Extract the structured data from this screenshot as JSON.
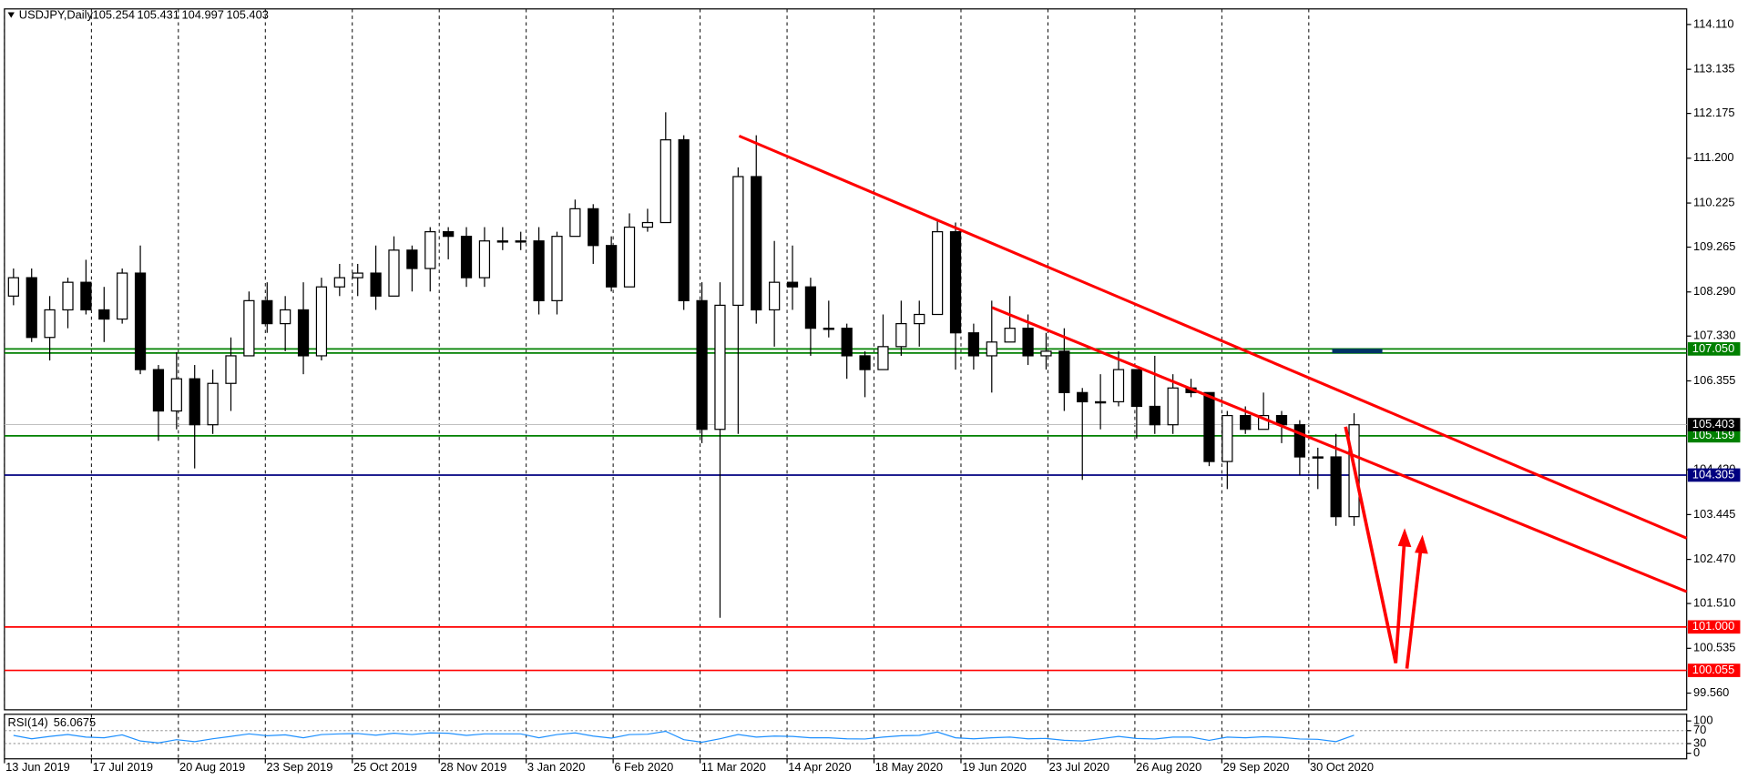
{
  "chart_data": {
    "type": "candlestick",
    "symbol": "USDJPY,Daily",
    "ohlc": [
      105.254,
      105.431,
      104.997,
      105.403
    ],
    "candles": [
      [
        108.2,
        108.8,
        108.0,
        108.6
      ],
      [
        108.6,
        108.8,
        107.2,
        107.3
      ],
      [
        107.3,
        108.2,
        106.8,
        107.9
      ],
      [
        107.9,
        108.6,
        107.5,
        108.5
      ],
      [
        108.5,
        108.99,
        107.8,
        107.9
      ],
      [
        107.9,
        108.4,
        107.2,
        107.7
      ],
      [
        107.7,
        108.8,
        107.6,
        108.7
      ],
      [
        108.7,
        109.3,
        106.5,
        106.6
      ],
      [
        106.6,
        106.7,
        105.05,
        105.7
      ],
      [
        105.7,
        106.98,
        105.3,
        106.4
      ],
      [
        106.4,
        106.7,
        104.45,
        105.4
      ],
      [
        105.4,
        106.6,
        105.2,
        106.3
      ],
      [
        106.3,
        107.3,
        105.7,
        106.9
      ],
      [
        106.9,
        108.3,
        106.9,
        108.1
      ],
      [
        108.1,
        108.5,
        107.4,
        107.6
      ],
      [
        107.6,
        108.2,
        107.0,
        107.9
      ],
      [
        107.9,
        108.5,
        106.5,
        106.9
      ],
      [
        106.9,
        108.6,
        106.8,
        108.4
      ],
      [
        108.4,
        108.9,
        108.2,
        108.6
      ],
      [
        108.6,
        108.9,
        108.2,
        108.7
      ],
      [
        108.7,
        109.3,
        107.9,
        108.2
      ],
      [
        108.2,
        109.5,
        108.2,
        109.2
      ],
      [
        109.2,
        109.3,
        108.3,
        108.8
      ],
      [
        108.8,
        109.7,
        108.3,
        109.6
      ],
      [
        109.6,
        109.7,
        109.0,
        109.5
      ],
      [
        109.5,
        109.7,
        108.4,
        108.6
      ],
      [
        108.6,
        109.7,
        108.4,
        109.4
      ],
      [
        109.4,
        109.7,
        109.2,
        109.4
      ],
      [
        109.4,
        109.6,
        109.2,
        109.4
      ],
      [
        109.4,
        109.7,
        107.8,
        108.1
      ],
      [
        108.1,
        109.6,
        107.8,
        109.5
      ],
      [
        109.5,
        110.3,
        109.5,
        110.1
      ],
      [
        110.1,
        110.2,
        108.9,
        109.3
      ],
      [
        109.3,
        109.5,
        108.3,
        108.4
      ],
      [
        108.4,
        110.0,
        108.4,
        109.7
      ],
      [
        109.7,
        110.1,
        109.6,
        109.8
      ],
      [
        109.8,
        112.2,
        109.8,
        111.6
      ],
      [
        111.6,
        111.7,
        107.9,
        108.1
      ],
      [
        108.1,
        108.5,
        105.0,
        105.3
      ],
      [
        105.3,
        108.5,
        101.2,
        108.0
      ],
      [
        108.0,
        111.0,
        105.2,
        110.8
      ],
      [
        110.8,
        111.7,
        107.6,
        107.9
      ],
      [
        107.9,
        109.4,
        107.1,
        108.5
      ],
      [
        108.5,
        109.3,
        107.9,
        108.4
      ],
      [
        108.4,
        108.6,
        106.9,
        107.5
      ],
      [
        107.5,
        108.1,
        107.3,
        107.5
      ],
      [
        107.5,
        107.6,
        106.4,
        106.9
      ],
      [
        106.9,
        107.0,
        106.0,
        106.6
      ],
      [
        106.6,
        107.8,
        106.6,
        107.1
      ],
      [
        107.1,
        108.1,
        106.9,
        107.6
      ],
      [
        107.6,
        108.1,
        107.1,
        107.8
      ],
      [
        107.8,
        109.85,
        107.8,
        109.6
      ],
      [
        109.6,
        109.8,
        106.6,
        107.4
      ],
      [
        107.4,
        107.6,
        106.6,
        106.9
      ],
      [
        106.9,
        108.1,
        106.1,
        107.2
      ],
      [
        107.2,
        108.2,
        107.2,
        107.5
      ],
      [
        107.5,
        107.8,
        106.7,
        106.9
      ],
      [
        106.9,
        107.4,
        106.6,
        107.0
      ],
      [
        107.0,
        107.5,
        105.7,
        106.1
      ],
      [
        106.1,
        106.2,
        104.2,
        105.9
      ],
      [
        105.9,
        106.5,
        105.3,
        105.9
      ],
      [
        105.9,
        107.0,
        105.8,
        106.6
      ],
      [
        106.6,
        106.6,
        105.1,
        105.8
      ],
      [
        105.8,
        106.9,
        105.2,
        105.4
      ],
      [
        105.4,
        106.5,
        105.2,
        106.2
      ],
      [
        106.2,
        106.4,
        106.0,
        106.1
      ],
      [
        106.1,
        106.1,
        104.5,
        104.6
      ],
      [
        104.6,
        105.7,
        104.0,
        105.6
      ],
      [
        105.6,
        105.8,
        105.2,
        105.3
      ],
      [
        105.3,
        106.1,
        105.3,
        105.6
      ],
      [
        105.6,
        105.7,
        105.0,
        105.4
      ],
      [
        105.4,
        105.5,
        104.3,
        104.7
      ],
      [
        104.7,
        104.9,
        104.0,
        104.7
      ],
      [
        104.7,
        105.2,
        103.2,
        103.4
      ],
      [
        103.4,
        105.65,
        103.2,
        105.4
      ]
    ],
    "up_color": "#ffffff",
    "down_color": "#000000",
    "xlim": [
      0,
      92.86
    ],
    "xticks": [
      {
        "value": 0,
        "label": "13 Jun 2019"
      },
      {
        "value": 4.8,
        "label": "17 Jul 2019"
      },
      {
        "value": 9.6,
        "label": "20 Aug 2019"
      },
      {
        "value": 14.4,
        "label": "23 Sep 2019"
      },
      {
        "value": 19.2,
        "label": "25 Oct 2019"
      },
      {
        "value": 24,
        "label": "28 Nov 2019"
      },
      {
        "value": 28.8,
        "label": "3 Jan 2020"
      },
      {
        "value": 33.6,
        "label": "6 Feb 2020"
      },
      {
        "value": 38.4,
        "label": "11 Mar 2020"
      },
      {
        "value": 43.2,
        "label": "14 Apr 2020"
      },
      {
        "value": 48,
        "label": "18 May 2020"
      },
      {
        "value": 52.8,
        "label": "19 Jun 2020"
      },
      {
        "value": 57.6,
        "label": "23 Jul 2020"
      },
      {
        "value": 62.4,
        "label": "26 Aug 2020"
      },
      {
        "value": 67.2,
        "label": "29 Sep 2020"
      },
      {
        "value": 72,
        "label": "30 Oct 2020"
      }
    ],
    "ylim": [
      99.197,
      114.449
    ],
    "yticks": [
      {
        "value": 114.11,
        "label": "114.110"
      },
      113.135,
      112.175,
      {
        "value": 111.2,
        "label": "111.200"
      },
      110.225,
      109.265,
      {
        "value": 108.29,
        "label": "108.290"
      },
      {
        "value": 107.33,
        "label": "107.330"
      },
      106.355,
      {
        "value": 104.42,
        "label": "104.420"
      },
      103.445,
      {
        "value": 102.47,
        "label": "102.470"
      },
      {
        "value": 101.51,
        "label": "101.510"
      },
      100.535,
      {
        "value": 99.56,
        "label": "99.560"
      }
    ],
    "grid": true,
    "levels": [
      {
        "value": 106.96,
        "color": "#008000"
      },
      {
        "value": 107.05,
        "label": "107.050",
        "color": "#008000"
      },
      {
        "value": 105.159,
        "label": "105.159",
        "color": "#008000"
      },
      {
        "value": 104.305,
        "label": "104.305",
        "color": "#000080"
      },
      {
        "value": 101,
        "label": "101.000",
        "color": "#ff0000"
      },
      {
        "value": 100.055,
        "label": "100.055",
        "color": "#ff0000"
      }
    ],
    "rsi_title": "RSI(14)",
    "rsi_value": 56.0675,
    "rsi_color": "#1e90ff",
    "rsi_lim": [
      0,
      100
    ],
    "rsi_ticks": [
      100,
      70,
      30,
      0
    ],
    "rsi_values": [
      55,
      45,
      52,
      58,
      50,
      48,
      57,
      38,
      32,
      42,
      36,
      45,
      52,
      60,
      54,
      57,
      48,
      58,
      60,
      61,
      56,
      62,
      58,
      63,
      62,
      55,
      60,
      60,
      60,
      48,
      58,
      63,
      53,
      47,
      58,
      59,
      68,
      42,
      34,
      45,
      58,
      50,
      53,
      52,
      48,
      48,
      45,
      44,
      50,
      54,
      55,
      66,
      48,
      45,
      48,
      50,
      45,
      46,
      40,
      38,
      45,
      52,
      46,
      44,
      50,
      50,
      40,
      50,
      48,
      51,
      49,
      44,
      43,
      36,
      56
    ]
  }
}
